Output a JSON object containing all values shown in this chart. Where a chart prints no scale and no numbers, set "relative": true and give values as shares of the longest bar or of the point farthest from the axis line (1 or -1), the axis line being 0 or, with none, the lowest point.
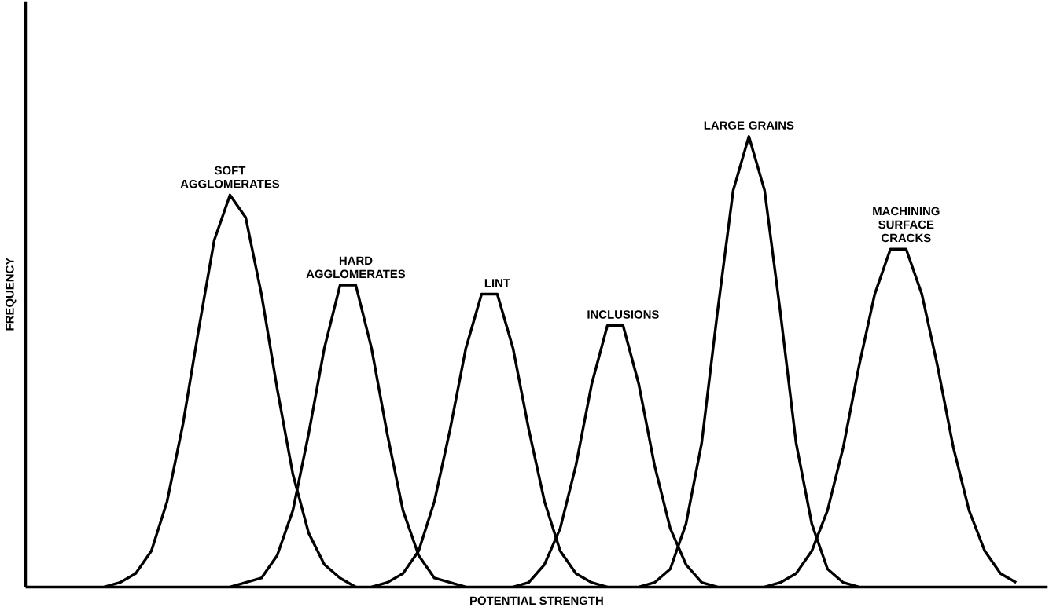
{
  "chart_data": {
    "type": "line",
    "relative": true,
    "xlabel": "POTENTIAL STRENGTH",
    "ylabel": "FREQUENCY",
    "categories": [
      null,
      null,
      null,
      null,
      null,
      null,
      null,
      null,
      null,
      null,
      null,
      null,
      null,
      null,
      null,
      null,
      null,
      null,
      null,
      null,
      null,
      null,
      null,
      null,
      null,
      null,
      null,
      null,
      null,
      null,
      null,
      null,
      null,
      null,
      null,
      null,
      null,
      null,
      null,
      null,
      null,
      null,
      null,
      null,
      null,
      null,
      null,
      null,
      null,
      null,
      null,
      null,
      null,
      null,
      null,
      null,
      null,
      null,
      null,
      null,
      null
    ],
    "series": [
      {
        "name": "SOFT AGGLOMERATES",
        "color": "#000000",
        "values": [
          null,
          null,
          0,
          0.01,
          0.03,
          0.08,
          0.19,
          0.36,
          0.57,
          0.77,
          0.87,
          0.82,
          0.65,
          0.44,
          0.25,
          0.12,
          0.05,
          0.02,
          0,
          null,
          null,
          null,
          null,
          null,
          null,
          null,
          null,
          null,
          null,
          null,
          null,
          null,
          null,
          null,
          null,
          null,
          null,
          null,
          null,
          null,
          null,
          null,
          null,
          null,
          null,
          null,
          null,
          null,
          null,
          null,
          null,
          null,
          null,
          null,
          null,
          null,
          null,
          null,
          null,
          null,
          null
        ]
      },
      {
        "name": "HARD AGGLOMERATES",
        "color": "#000000",
        "values": [
          null,
          null,
          null,
          null,
          null,
          null,
          null,
          null,
          null,
          null,
          0,
          0.01,
          0.02,
          0.07,
          0.17,
          0.34,
          0.53,
          0.67,
          0.67,
          0.53,
          0.34,
          0.17,
          0.07,
          0.02,
          0.01,
          0,
          null,
          null,
          null,
          null,
          null,
          null,
          null,
          null,
          null,
          null,
          null,
          null,
          null,
          null,
          null,
          null,
          null,
          null,
          null,
          null,
          null,
          null,
          null,
          null,
          null,
          null,
          null,
          null,
          null,
          null,
          null,
          null,
          null,
          null,
          null
        ]
      },
      {
        "name": "LINT",
        "color": "#000000",
        "values": [
          null,
          null,
          null,
          null,
          null,
          null,
          null,
          null,
          null,
          null,
          null,
          null,
          null,
          null,
          null,
          null,
          null,
          null,
          null,
          0,
          0.01,
          0.03,
          0.08,
          0.19,
          0.35,
          0.53,
          0.65,
          0.65,
          0.53,
          0.35,
          0.19,
          0.08,
          0.03,
          0.01,
          0,
          null,
          null,
          null,
          null,
          null,
          null,
          null,
          null,
          null,
          null,
          null,
          null,
          null,
          null,
          null,
          null,
          null,
          null,
          null,
          null,
          null,
          null,
          null,
          null,
          null,
          null
        ]
      },
      {
        "name": "INCLUSIONS",
        "color": "#000000",
        "values": [
          null,
          null,
          null,
          null,
          null,
          null,
          null,
          null,
          null,
          null,
          null,
          null,
          null,
          null,
          null,
          null,
          null,
          null,
          null,
          null,
          null,
          null,
          null,
          null,
          null,
          null,
          null,
          null,
          0,
          0.01,
          0.05,
          0.13,
          0.27,
          0.45,
          0.58,
          0.58,
          0.45,
          0.27,
          0.13,
          0.05,
          0.01,
          0,
          null,
          null,
          null,
          null,
          null,
          null,
          null,
          null,
          null,
          null,
          null,
          null,
          null,
          null,
          null,
          null,
          null,
          null,
          null
        ]
      },
      {
        "name": "LARGE GRAINS",
        "color": "#000000",
        "values": [
          null,
          null,
          null,
          null,
          null,
          null,
          null,
          null,
          null,
          null,
          null,
          null,
          null,
          null,
          null,
          null,
          null,
          null,
          null,
          null,
          null,
          null,
          null,
          null,
          null,
          null,
          null,
          null,
          null,
          null,
          null,
          null,
          null,
          null,
          null,
          null,
          0,
          0.01,
          0.04,
          0.14,
          0.32,
          0.61,
          0.88,
          1,
          0.88,
          0.61,
          0.32,
          0.14,
          0.04,
          0.01,
          0,
          null,
          null,
          null,
          null,
          null,
          null,
          null,
          null,
          null,
          null
        ]
      },
      {
        "name": "MACHINING SURFACE CRACKS",
        "color": "#000000",
        "values": [
          null,
          null,
          null,
          null,
          null,
          null,
          null,
          null,
          null,
          null,
          null,
          null,
          null,
          null,
          null,
          null,
          null,
          null,
          null,
          null,
          null,
          null,
          null,
          null,
          null,
          null,
          null,
          null,
          null,
          null,
          null,
          null,
          null,
          null,
          null,
          null,
          null,
          null,
          null,
          null,
          null,
          null,
          null,
          null,
          0,
          0.01,
          0.03,
          0.08,
          0.17,
          0.31,
          0.49,
          0.65,
          0.75,
          0.75,
          0.65,
          0.49,
          0.31,
          0.17,
          0.08,
          0.03,
          0.01
        ]
      }
    ]
  }
}
